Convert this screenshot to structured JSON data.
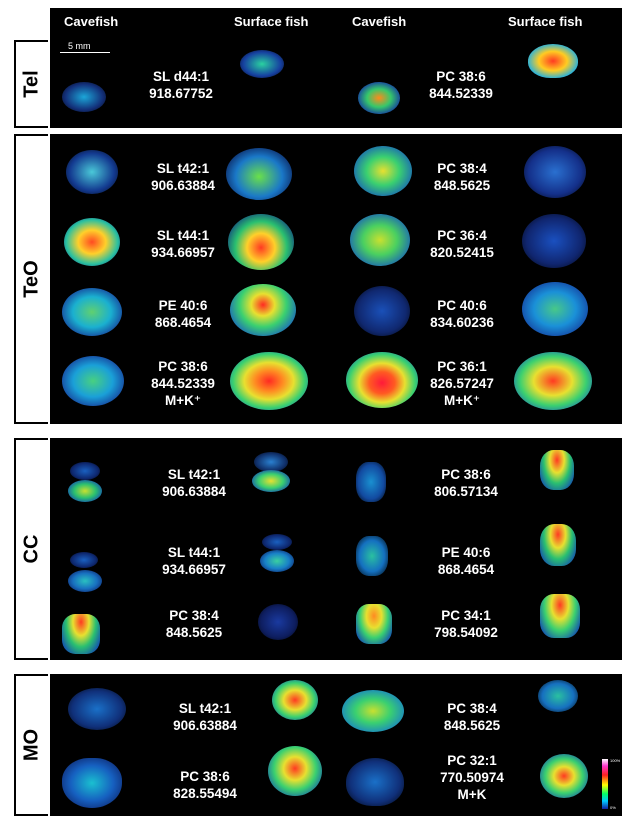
{
  "headers": [
    "Cavefish",
    "Surface fish",
    "Cavefish",
    "Surface fish"
  ],
  "scale_bar": "5 mm",
  "colorbar": {
    "max": "100%",
    "min": "0%"
  },
  "sections": [
    {
      "name": "Tel",
      "rows": [
        {
          "left": [
            "SL d44:1",
            "918.67752"
          ],
          "right": [
            "PC 38:6",
            "844.52339"
          ]
        }
      ]
    },
    {
      "name": "TeO",
      "rows": [
        {
          "left": [
            "SL t42:1",
            "906.63884"
          ],
          "right": [
            "PC 38:4",
            "848.5625"
          ]
        },
        {
          "left": [
            "SL t44:1",
            "934.66957"
          ],
          "right": [
            "PC 36:4",
            "820.52415"
          ]
        },
        {
          "left": [
            "PE 40:6",
            "868.4654"
          ],
          "right": [
            "PC 40:6",
            "834.60236"
          ]
        },
        {
          "left": [
            "PC 38:6",
            "844.52339",
            "M+K⁺"
          ],
          "right": [
            "PC 36:1",
            "826.57247",
            "M+K⁺"
          ]
        }
      ]
    },
    {
      "name": "CC",
      "rows": [
        {
          "left": [
            "SL t42:1",
            "906.63884"
          ],
          "right": [
            "PC 38:6",
            "806.57134"
          ]
        },
        {
          "left": [
            "SL t44:1",
            "934.66957"
          ],
          "right": [
            "PE 40:6",
            "868.4654"
          ]
        },
        {
          "left": [
            "PC 38:4",
            "848.5625"
          ],
          "right": [
            "PC 34:1",
            "798.54092"
          ]
        }
      ]
    },
    {
      "name": "MO",
      "rows": [
        {
          "left": [
            "SL t42:1",
            "906.63884"
          ],
          "right": [
            "PC 38:4",
            "848.5625"
          ]
        },
        {
          "left": [
            "PC 38:6",
            "828.55494"
          ],
          "right": [
            "PC 32:1",
            "770.50974",
            "M+K"
          ]
        }
      ]
    }
  ]
}
